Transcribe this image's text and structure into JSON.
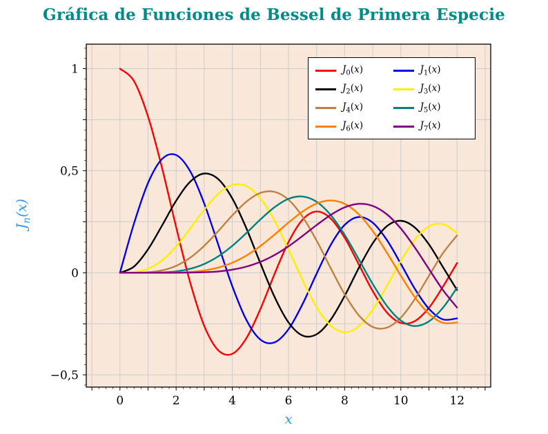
{
  "style": {
    "title_color": "#008b8b",
    "axis_label_color": "#3399ff",
    "plot_bg": "#f9e8da",
    "grid_color": "#cccccc",
    "frame_color": "#000000",
    "legend_bg": "#ffffff"
  },
  "chart_data": {
    "type": "line",
    "title": "Gráfica de Funciones de Bessel de Primera Especie",
    "xlabel": "x",
    "ylabel": "J_n(x)",
    "ylabel_parts": {
      "base": "J",
      "sub": "n",
      "arg": "(x)"
    },
    "xlim": [
      -1.2,
      13.2
    ],
    "ylim": [
      -0.56,
      1.12
    ],
    "grid": {
      "x_start": -1,
      "x_end": 13,
      "x_step": 1,
      "y_start": -0.5,
      "y_end": 1.0,
      "y_step": 0.25
    },
    "x_ticks": {
      "values": [
        0,
        2,
        4,
        6,
        8,
        10,
        12
      ],
      "labels": [
        "0",
        "2",
        "4",
        "6",
        "8",
        "10",
        "12"
      ]
    },
    "y_ticks": {
      "values": [
        -0.5,
        0,
        0.5,
        1
      ],
      "labels": [
        "−0,5",
        "0",
        "0,5",
        "1"
      ]
    },
    "legend_position": "top-right",
    "x": [
      0,
      0.5,
      1,
      1.5,
      2,
      2.5,
      3,
      3.5,
      4,
      4.5,
      5,
      5.5,
      6,
      6.5,
      7,
      7.5,
      8,
      8.5,
      9,
      9.5,
      10,
      10.5,
      11,
      11.5,
      12
    ],
    "series": [
      {
        "id": "J0",
        "label": "J_0(x)",
        "color": "#ff0000",
        "values": [
          1,
          0.9385,
          0.7652,
          0.5118,
          0.2239,
          -0.0484,
          -0.2601,
          -0.3801,
          -0.3971,
          -0.3205,
          -0.1776,
          -0.0068,
          0.1506,
          0.2601,
          0.3001,
          0.2663,
          0.1717,
          0.0419,
          -0.0903,
          -0.1939,
          -0.2459,
          -0.2366,
          -0.1712,
          -0.0677,
          0.0477
        ]
      },
      {
        "id": "J1",
        "label": "J_1(x)",
        "color": "#0000ee",
        "values": [
          0,
          0.2423,
          0.4401,
          0.5579,
          0.5767,
          0.4971,
          0.3391,
          0.1374,
          -0.066,
          -0.2311,
          -0.3276,
          -0.3414,
          -0.2767,
          -0.1538,
          -0.0047,
          0.1352,
          0.2346,
          0.2731,
          0.2453,
          0.1613,
          0.0435,
          -0.0789,
          -0.1768,
          -0.2284,
          -0.2234
        ]
      },
      {
        "id": "J2",
        "label": "J_2(x)",
        "color": "#000000",
        "values": [
          0,
          0.0306,
          0.1149,
          0.2321,
          0.3528,
          0.4461,
          0.4861,
          0.4586,
          0.3641,
          0.2178,
          0.0466,
          -0.1173,
          -0.2429,
          -0.3074,
          -0.3014,
          -0.2303,
          -0.113,
          0.0223,
          0.1448,
          0.2279,
          0.2546,
          0.2216,
          0.139,
          0.0279,
          -0.0849
        ]
      },
      {
        "id": "J3",
        "label": "J_3(x)",
        "color": "#ffee00",
        "values": [
          0,
          0.0025,
          0.0196,
          0.061,
          0.1289,
          0.2167,
          0.3091,
          0.3868,
          0.4302,
          0.4247,
          0.3648,
          0.2561,
          0.1148,
          -0.0353,
          -0.1676,
          -0.2581,
          -0.2911,
          -0.2626,
          -0.1809,
          -0.0653,
          0.0584,
          0.1633,
          0.2273,
          0.2381,
          0.1951
        ]
      },
      {
        "id": "J4",
        "label": "J_4(x)",
        "color": "#bf8040",
        "values": [
          0,
          0.0002,
          0.0025,
          0.0118,
          0.034,
          0.0738,
          0.132,
          0.2044,
          0.2811,
          0.3484,
          0.3912,
          0.3967,
          0.3576,
          0.2748,
          0.1578,
          0.0238,
          -0.1054,
          -0.2077,
          -0.2655,
          -0.2691,
          -0.2196,
          -0.1283,
          -0.015,
          0.0963,
          0.1825
        ]
      },
      {
        "id": "J5",
        "label": "J_5(x)",
        "color": "#008080",
        "values": [
          0,
          0.0,
          0.0002,
          0.0018,
          0.007,
          0.0195,
          0.043,
          0.0804,
          0.1321,
          0.1947,
          0.2611,
          0.3209,
          0.3621,
          0.3736,
          0.3479,
          0.2835,
          0.1858,
          0.0671,
          -0.055,
          -0.1613,
          -0.2341,
          -0.2611,
          -0.2383,
          -0.1711,
          -0.0735
        ]
      },
      {
        "id": "J6",
        "label": "J_6(x)",
        "color": "#ff8000",
        "values": [
          0,
          0.0,
          0.0,
          0.0002,
          0.0012,
          0.0042,
          0.0114,
          0.0254,
          0.0491,
          0.0843,
          0.131,
          0.1868,
          0.2458,
          0.3,
          0.3392,
          0.3541,
          0.3376,
          0.2867,
          0.2043,
          0.0993,
          -0.0145,
          -0.1203,
          -0.2016,
          -0.2452,
          -0.2437
        ]
      },
      {
        "id": "J7",
        "label": "J_7(x)",
        "color": "#800080",
        "values": [
          0,
          0.0,
          0.0,
          0.0,
          0.0002,
          0.0008,
          0.0025,
          0.0067,
          0.0152,
          0.0301,
          0.0534,
          0.0866,
          0.1296,
          0.1803,
          0.2336,
          0.2831,
          0.3206,
          0.3377,
          0.3274,
          0.2867,
          0.2167,
          0.1236,
          0.0184,
          -0.0848,
          -0.1702
        ]
      }
    ]
  }
}
